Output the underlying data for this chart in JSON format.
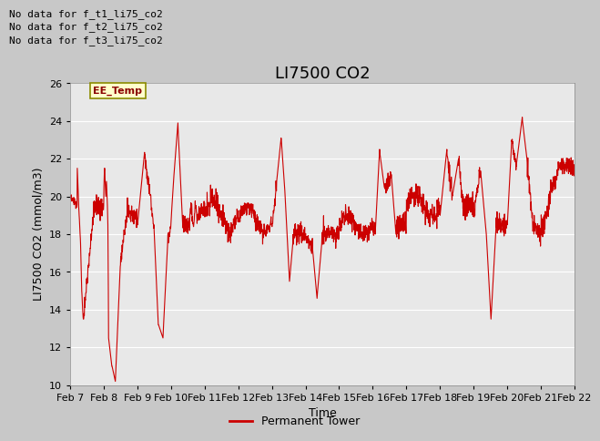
{
  "title": "LI7500 CO2",
  "xlabel": "Time",
  "ylabel": "LI7500 CO2 (mmol/m3)",
  "ylim": [
    10,
    26
  ],
  "yticks": [
    10,
    12,
    14,
    16,
    18,
    20,
    22,
    24,
    26
  ],
  "x_tick_labels": [
    "Feb 7",
    "Feb 8",
    "Feb 9",
    "Feb 10",
    "Feb 11",
    "Feb 12",
    "Feb 13",
    "Feb 14",
    "Feb 15",
    "Feb 16",
    "Feb 17",
    "Feb 18",
    "Feb 19",
    "Feb 20",
    "Feb 21",
    "Feb 22"
  ],
  "line_color": "#cc0000",
  "legend_label": "Permanent Tower",
  "no_data_texts": [
    "No data for f_t1_li75_co2",
    "No data for f_t2_li75_co2",
    "No data for f_t3_li75_co2"
  ],
  "ee_temp_label": "EE_Temp",
  "fig_facecolor": "#c8c8c8",
  "plot_facecolor": "#e8e8e8",
  "title_fontsize": 13,
  "axis_label_fontsize": 9,
  "tick_fontsize": 8,
  "nodata_fontsize": 8,
  "legend_fontsize": 9
}
